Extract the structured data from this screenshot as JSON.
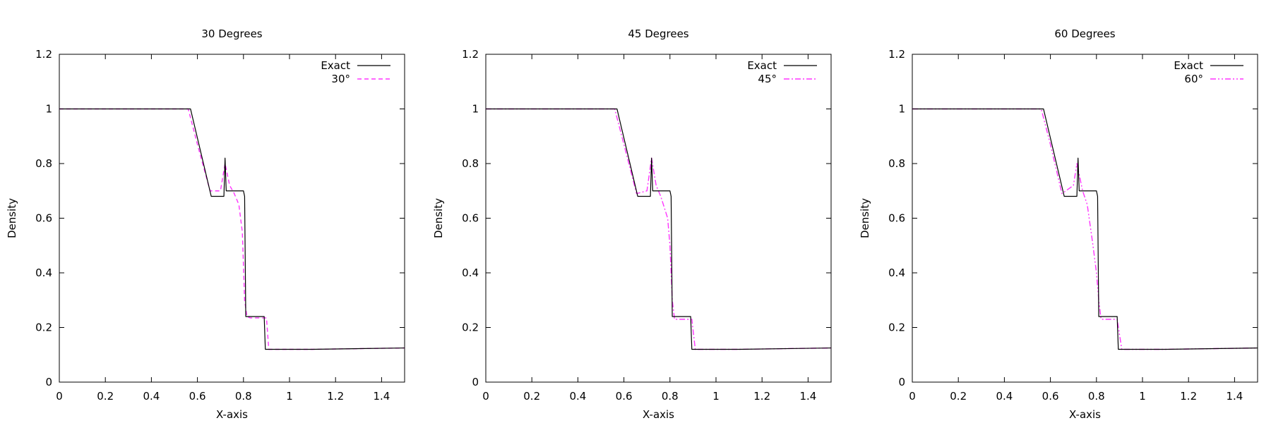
{
  "chart_data": [
    {
      "type": "line",
      "title": "30 Degrees",
      "xlabel": "X-axis",
      "ylabel": "Density",
      "xlim": [
        0,
        1.5
      ],
      "ylim": [
        0,
        1.2
      ],
      "xticks": [
        "0",
        "0.2",
        "0.4",
        "0.6",
        "0.8",
        "1",
        "1.2",
        "1.4"
      ],
      "yticks": [
        "0",
        "0.2",
        "0.4",
        "0.6",
        "0.8",
        "1",
        "1.2"
      ],
      "legend_position": "top-right",
      "series": [
        {
          "name": "Exact",
          "color": "#000000",
          "dash": "solid",
          "x": [
            0,
            0.57,
            0.66,
            0.7,
            0.715,
            0.72,
            0.725,
            0.73,
            0.8,
            0.805,
            0.81,
            0.89,
            0.895,
            1.1,
            1.5
          ],
          "y": [
            1.0,
            1.0,
            0.68,
            0.68,
            0.68,
            0.82,
            0.7,
            0.7,
            0.7,
            0.68,
            0.24,
            0.24,
            0.12,
            0.12,
            0.125
          ]
        },
        {
          "name": "30°",
          "color": "#ff33ff",
          "dash": "dashed",
          "x": [
            0,
            0.56,
            0.6,
            0.655,
            0.7,
            0.72,
            0.74,
            0.76,
            0.78,
            0.795,
            0.805,
            0.815,
            0.83,
            0.9,
            0.91,
            1.1,
            1.5
          ],
          "y": [
            1.0,
            1.0,
            0.87,
            0.7,
            0.7,
            0.8,
            0.72,
            0.69,
            0.65,
            0.55,
            0.3,
            0.24,
            0.235,
            0.235,
            0.12,
            0.12,
            0.125
          ]
        }
      ]
    },
    {
      "type": "line",
      "title": "45 Degrees",
      "xlabel": "X-axis",
      "ylabel": "Density",
      "xlim": [
        0,
        1.5
      ],
      "ylim": [
        0,
        1.2
      ],
      "xticks": [
        "0",
        "0.2",
        "0.4",
        "0.6",
        "0.8",
        "1",
        "1.2",
        "1.4"
      ],
      "yticks": [
        "0",
        "0.2",
        "0.4",
        "0.6",
        "0.8",
        "1",
        "1.2"
      ],
      "legend_position": "top-right",
      "series": [
        {
          "name": "Exact",
          "color": "#000000",
          "dash": "solid",
          "x": [
            0,
            0.57,
            0.66,
            0.7,
            0.715,
            0.72,
            0.725,
            0.73,
            0.8,
            0.805,
            0.81,
            0.89,
            0.895,
            1.1,
            1.5
          ],
          "y": [
            1.0,
            1.0,
            0.68,
            0.68,
            0.68,
            0.82,
            0.7,
            0.7,
            0.7,
            0.68,
            0.24,
            0.24,
            0.12,
            0.12,
            0.125
          ]
        },
        {
          "name": "45°",
          "color": "#ff33ff",
          "dash": "dashdot",
          "x": [
            0,
            0.56,
            0.6,
            0.655,
            0.7,
            0.72,
            0.74,
            0.76,
            0.79,
            0.8,
            0.81,
            0.82,
            0.84,
            0.895,
            0.91,
            1.1,
            1.5
          ],
          "y": [
            1.0,
            1.0,
            0.87,
            0.69,
            0.7,
            0.82,
            0.72,
            0.68,
            0.6,
            0.5,
            0.3,
            0.23,
            0.23,
            0.23,
            0.12,
            0.12,
            0.125
          ]
        }
      ]
    },
    {
      "type": "line",
      "title": "60 Degrees",
      "xlabel": "X-axis",
      "ylabel": "Density",
      "xlim": [
        0,
        1.5
      ],
      "ylim": [
        0,
        1.2
      ],
      "xticks": [
        "0",
        "0.2",
        "0.4",
        "0.6",
        "0.8",
        "1",
        "1.2",
        "1.4"
      ],
      "yticks": [
        "0",
        "0.2",
        "0.4",
        "0.6",
        "0.8",
        "1",
        "1.2"
      ],
      "legend_position": "top-right",
      "series": [
        {
          "name": "Exact",
          "color": "#000000",
          "dash": "solid",
          "x": [
            0,
            0.57,
            0.66,
            0.7,
            0.715,
            0.72,
            0.725,
            0.73,
            0.8,
            0.805,
            0.81,
            0.89,
            0.895,
            1.1,
            1.5
          ],
          "y": [
            1.0,
            1.0,
            0.68,
            0.68,
            0.68,
            0.82,
            0.7,
            0.7,
            0.7,
            0.68,
            0.24,
            0.24,
            0.12,
            0.12,
            0.125
          ]
        },
        {
          "name": "60°",
          "color": "#ff33ff",
          "dash": "dashdotdot",
          "x": [
            0,
            0.56,
            0.6,
            0.65,
            0.7,
            0.715,
            0.74,
            0.76,
            0.785,
            0.8,
            0.81,
            0.82,
            0.84,
            0.89,
            0.91,
            1.1,
            1.5
          ],
          "y": [
            1.0,
            1.0,
            0.87,
            0.69,
            0.72,
            0.8,
            0.7,
            0.65,
            0.5,
            0.4,
            0.3,
            0.23,
            0.23,
            0.23,
            0.12,
            0.12,
            0.125
          ]
        }
      ]
    }
  ]
}
